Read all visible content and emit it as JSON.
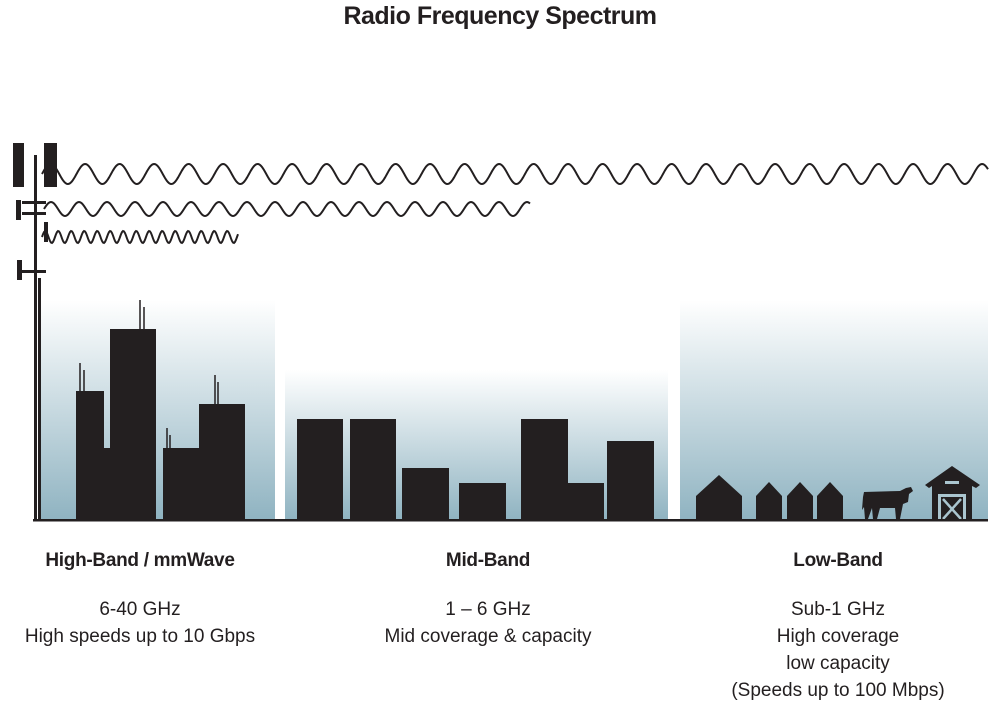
{
  "title": "Radio Frequency Spectrum",
  "colors": {
    "ink": "#231f20",
    "sky_bottom": "#8fb3c1",
    "sky_top": "#ffffff"
  },
  "bands": [
    {
      "name": "High-Band / mmWave",
      "lines": [
        "6-40 GHz",
        "High speeds up to 10 Gbps"
      ]
    },
    {
      "name": "Mid-Band",
      "lines": [
        "1 – 6 GHz",
        "Mid coverage & capacity"
      ]
    },
    {
      "name": "Low-Band",
      "lines": [
        "Sub-1 GHz",
        "High coverage",
        "low capacity",
        "(Speeds up to 100 Mbps)"
      ]
    }
  ]
}
